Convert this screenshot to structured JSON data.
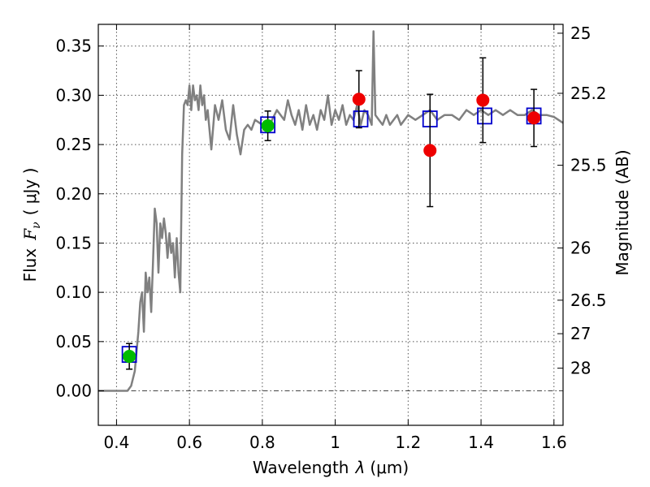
{
  "chart_data": {
    "type": "scatter",
    "title": "",
    "xlabel_prefix": "Wavelength",
    "xlabel_lambda": "λ",
    "xlabel_unit": "(μm)",
    "ylabel_prefix": "Flux",
    "ylabel_symbol": "F",
    "ylabel_sub": "ν",
    "ylabel_unit": "( μJy )",
    "y2label": "Magnitude (AB)",
    "xlim": [
      0.35,
      1.625
    ],
    "ylim": [
      -0.035,
      0.372
    ],
    "grid": true,
    "x_ticks": [
      0.4,
      0.6,
      0.8,
      1.0,
      1.2,
      1.4,
      1.6
    ],
    "x_tick_labels": [
      "0.4",
      "0.6",
      "0.8",
      "1",
      "1.2",
      "1.4",
      "1.6"
    ],
    "y_ticks": [
      0.0,
      0.05,
      0.1,
      0.15,
      0.2,
      0.25,
      0.3,
      0.35
    ],
    "y_tick_labels": [
      "0.00",
      "0.05",
      "0.10",
      "0.15",
      "0.20",
      "0.25",
      "0.30",
      "0.35"
    ],
    "y2_ticks": [
      {
        "label": "25",
        "flux": 0.363
      },
      {
        "label": "25.2",
        "flux": 0.302
      },
      {
        "label": "25.5",
        "flux": 0.229
      },
      {
        "label": "26",
        "flux": 0.145
      },
      {
        "label": "26.5",
        "flux": 0.092
      },
      {
        "label": "27",
        "flux": 0.058
      },
      {
        "label": "28",
        "flux": 0.023
      }
    ],
    "series": [
      {
        "name": "model spectrum",
        "kind": "line",
        "color": "#808080",
        "x": [
          0.35,
          0.43,
          0.44,
          0.45,
          0.455,
          0.46,
          0.465,
          0.47,
          0.475,
          0.48,
          0.485,
          0.49,
          0.495,
          0.5,
          0.505,
          0.51,
          0.515,
          0.52,
          0.525,
          0.53,
          0.535,
          0.54,
          0.545,
          0.55,
          0.555,
          0.56,
          0.565,
          0.57,
          0.575,
          0.58,
          0.585,
          0.59,
          0.595,
          0.6,
          0.605,
          0.61,
          0.615,
          0.62,
          0.625,
          0.63,
          0.635,
          0.64,
          0.645,
          0.65,
          0.66,
          0.67,
          0.68,
          0.69,
          0.7,
          0.71,
          0.72,
          0.73,
          0.74,
          0.75,
          0.76,
          0.77,
          0.78,
          0.8,
          0.82,
          0.84,
          0.86,
          0.87,
          0.88,
          0.89,
          0.9,
          0.91,
          0.92,
          0.93,
          0.94,
          0.95,
          0.96,
          0.97,
          0.98,
          0.99,
          1.0,
          1.01,
          1.02,
          1.03,
          1.04,
          1.05,
          1.06,
          1.07,
          1.08,
          1.09,
          1.1,
          1.105,
          1.11,
          1.12,
          1.13,
          1.14,
          1.15,
          1.16,
          1.17,
          1.18,
          1.2,
          1.22,
          1.24,
          1.26,
          1.28,
          1.3,
          1.32,
          1.34,
          1.36,
          1.38,
          1.4,
          1.42,
          1.44,
          1.46,
          1.48,
          1.5,
          1.52,
          1.54,
          1.56,
          1.58,
          1.6,
          1.625
        ],
        "y": [
          0.0,
          0.0,
          0.005,
          0.02,
          0.04,
          0.06,
          0.09,
          0.1,
          0.06,
          0.12,
          0.1,
          0.115,
          0.08,
          0.13,
          0.185,
          0.17,
          0.12,
          0.17,
          0.155,
          0.175,
          0.16,
          0.135,
          0.16,
          0.14,
          0.15,
          0.115,
          0.155,
          0.12,
          0.1,
          0.24,
          0.29,
          0.295,
          0.29,
          0.31,
          0.285,
          0.31,
          0.295,
          0.3,
          0.285,
          0.31,
          0.29,
          0.3,
          0.275,
          0.285,
          0.245,
          0.29,
          0.275,
          0.295,
          0.265,
          0.255,
          0.29,
          0.26,
          0.24,
          0.265,
          0.27,
          0.265,
          0.275,
          0.27,
          0.27,
          0.285,
          0.275,
          0.295,
          0.28,
          0.27,
          0.285,
          0.265,
          0.29,
          0.27,
          0.28,
          0.265,
          0.285,
          0.275,
          0.3,
          0.27,
          0.285,
          0.275,
          0.29,
          0.27,
          0.28,
          0.275,
          0.29,
          0.27,
          0.285,
          0.28,
          0.27,
          0.365,
          0.28,
          0.275,
          0.27,
          0.28,
          0.27,
          0.275,
          0.28,
          0.27,
          0.28,
          0.275,
          0.28,
          0.285,
          0.275,
          0.28,
          0.28,
          0.275,
          0.285,
          0.28,
          0.285,
          0.28,
          0.285,
          0.28,
          0.285,
          0.28,
          0.28,
          0.285,
          0.28,
          0.28,
          0.278,
          0.272
        ]
      },
      {
        "name": "model photometry",
        "kind": "open-square",
        "color": "#0000cc",
        "x": [
          0.435,
          0.815,
          1.07,
          1.26,
          1.41,
          1.545
        ],
        "y": [
          0.037,
          0.27,
          0.276,
          0.276,
          0.279,
          0.279
        ]
      },
      {
        "name": "observed (green)",
        "kind": "circle",
        "color": "#00bb00",
        "x": [
          0.435,
          0.815
        ],
        "y": [
          0.035,
          0.269
        ],
        "err": [
          0.013,
          0.015
        ]
      },
      {
        "name": "observed (red)",
        "kind": "circle",
        "color": "#ee0000",
        "x": [
          1.065,
          1.26,
          1.405,
          1.545
        ],
        "y": [
          0.296,
          0.244,
          0.295,
          0.277
        ],
        "err": [
          0.029,
          0.057,
          0.043,
          0.029
        ]
      }
    ]
  }
}
